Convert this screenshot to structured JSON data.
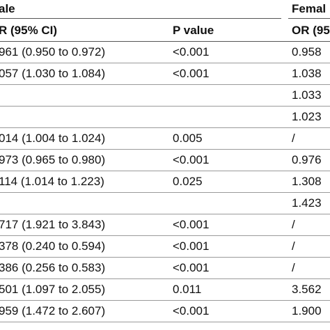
{
  "groups": {
    "male": "ale",
    "female": "Femal"
  },
  "headers": {
    "or_ci": "R (95% CI)",
    "p_value": "P value",
    "or_female": "OR (95"
  },
  "rows": [
    {
      "male_or": "961 (0.950 to 0.972)",
      "male_p": "<0.001",
      "female_or": "0.958"
    },
    {
      "male_or": "057 (1.030 to 1.084)",
      "male_p": "<0.001",
      "female_or": "1.038"
    },
    {
      "male_or": "",
      "male_p": "",
      "female_or": "1.033"
    },
    {
      "male_or": "",
      "male_p": "",
      "female_or": "1.023"
    },
    {
      "male_or": "014 (1.004 to 1.024)",
      "male_p": "0.005",
      "female_or": "/"
    },
    {
      "male_or": "973 (0.965 to 0.980)",
      "male_p": "<0.001",
      "female_or": "0.976"
    },
    {
      "male_or": "114 (1.014 to 1.223)",
      "male_p": "0.025",
      "female_or": "1.308"
    },
    {
      "male_or": "",
      "male_p": "",
      "female_or": "1.423"
    },
    {
      "male_or": "717 (1.921 to 3.843)",
      "male_p": "<0.001",
      "female_or": "/"
    },
    {
      "male_or": "378 (0.240 to 0.594)",
      "male_p": "<0.001",
      "female_or": "/"
    },
    {
      "male_or": "386 (0.256 to 0.583)",
      "male_p": "<0.001",
      "female_or": "/"
    },
    {
      "male_or": "501 (1.097 to 2.055)",
      "male_p": "0.011",
      "female_or": "3.562"
    },
    {
      "male_or": "959 (1.472 to 2.607)",
      "male_p": "<0.001",
      "female_or": "1.900"
    }
  ]
}
